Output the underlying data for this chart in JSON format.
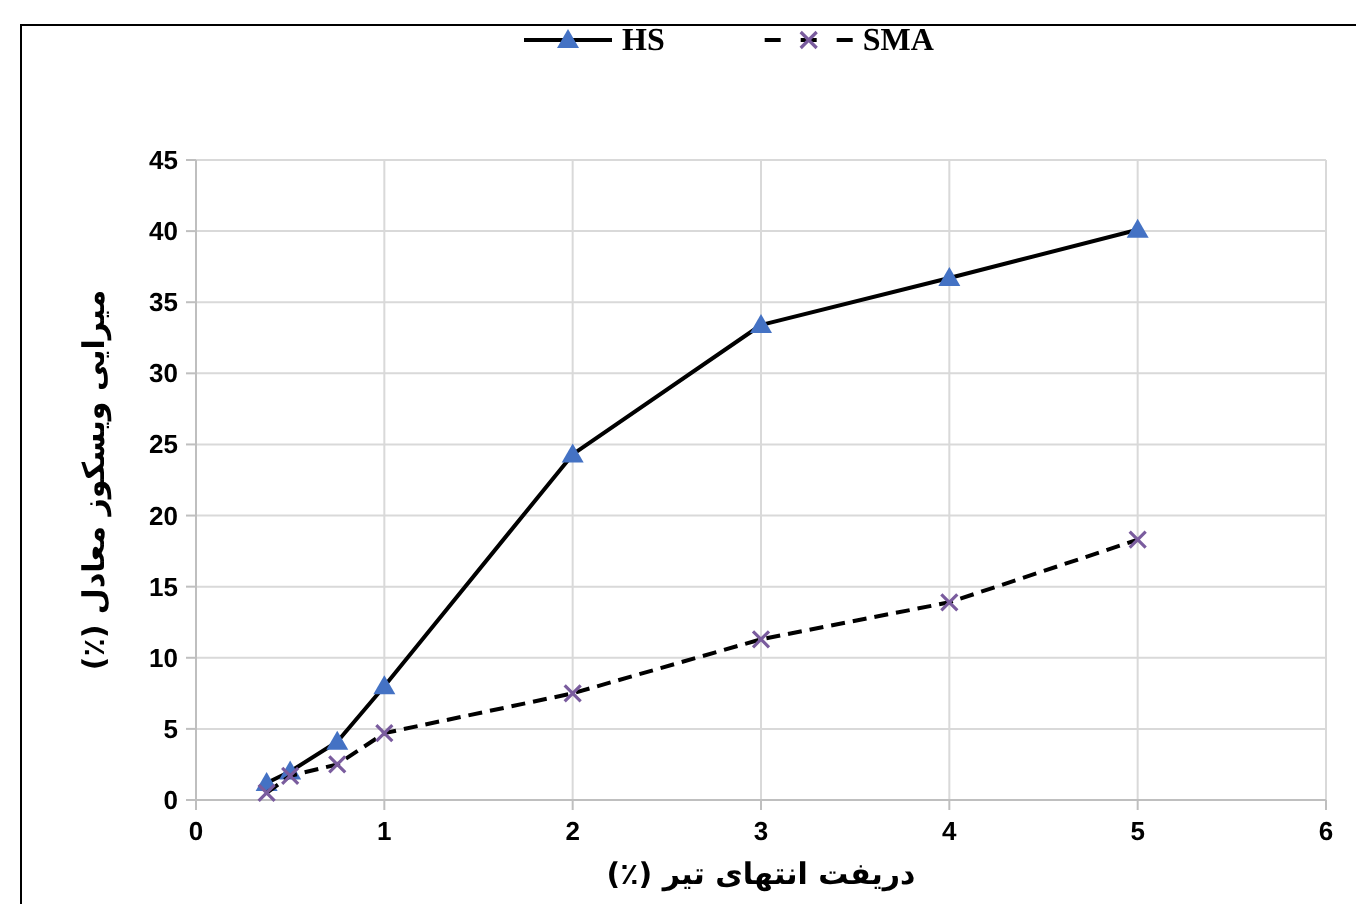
{
  "chart_data": {
    "type": "line",
    "xlabel": "دریفت انتهای تیر (٪)",
    "ylabel": "میرایی ویسکوز معادل (٪)",
    "x": [
      0.375,
      0.5,
      0.75,
      1,
      2,
      3,
      4,
      5
    ],
    "series": [
      {
        "name": "HS",
        "color": "#4472c4",
        "marker": "triangle",
        "line_style": "solid",
        "values": [
          1.2,
          2.0,
          4.1,
          8.0,
          24.3,
          33.4,
          36.7,
          40.1
        ]
      },
      {
        "name": "SMA",
        "color": "#7a5c9e",
        "marker": "cross",
        "line_style": "dashed",
        "values": [
          0.5,
          1.7,
          2.5,
          4.7,
          7.5,
          11.3,
          13.9,
          18.3
        ]
      }
    ],
    "xlim": [
      0,
      6
    ],
    "xticks": [
      0,
      1,
      2,
      3,
      4,
      5,
      6
    ],
    "ylim": [
      0,
      45
    ],
    "yticks": [
      0,
      5,
      10,
      15,
      20,
      25,
      30,
      35,
      40,
      45
    ],
    "grid": true,
    "legend": "top"
  }
}
